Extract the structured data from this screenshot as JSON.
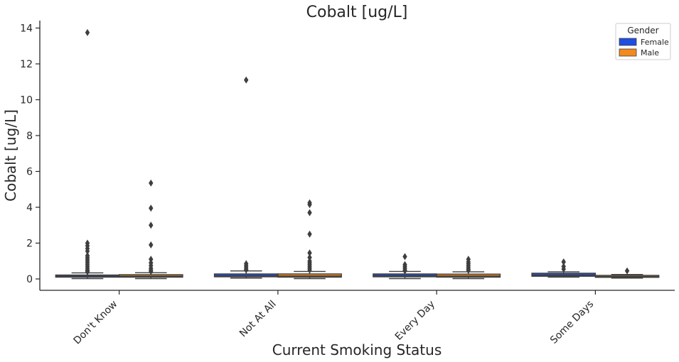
{
  "chart_data": {
    "type": "box",
    "title": "Cobalt [ug/L]",
    "xlabel": "Current Smoking Status",
    "ylabel": "Cobalt [ug/L]",
    "ylim": [
      -0.6,
      14.4
    ],
    "yticks": [
      0,
      2,
      4,
      6,
      8,
      10,
      12,
      14
    ],
    "categories": [
      "Don't Know",
      "Not At All",
      "Every Day",
      "Some Days"
    ],
    "legend": {
      "title": "Gender",
      "position": "top-right"
    },
    "grid": false,
    "series": [
      {
        "name": "Female",
        "color": "#1f4ee0",
        "boxes": [
          {
            "q1": 0.1,
            "median": 0.16,
            "q3": 0.22,
            "whisker_low": 0.02,
            "whisker_high": 0.34,
            "outliers": [
              13.75,
              2.0,
              1.85,
              1.7,
              1.55,
              1.3,
              1.2,
              1.1,
              1.0,
              0.9,
              0.8,
              0.7,
              0.6,
              0.5,
              0.45,
              0.4
            ]
          },
          {
            "q1": 0.12,
            "median": 0.17,
            "q3": 0.28,
            "whisker_low": 0.05,
            "whisker_high": 0.45,
            "outliers": [
              11.1,
              0.85,
              0.75,
              0.65,
              0.55,
              0.5
            ]
          },
          {
            "q1": 0.12,
            "median": 0.18,
            "q3": 0.28,
            "whisker_low": 0.02,
            "whisker_high": 0.42,
            "outliers": [
              1.25,
              0.8,
              0.7,
              0.6,
              0.5,
              0.45
            ]
          },
          {
            "q1": 0.15,
            "median": 0.21,
            "q3": 0.32,
            "whisker_low": 0.1,
            "whisker_high": 0.4,
            "outliers": [
              0.95,
              0.7,
              0.55
            ]
          }
        ]
      },
      {
        "name": "Male",
        "color": "#f28a1e",
        "boxes": [
          {
            "q1": 0.1,
            "median": 0.15,
            "q3": 0.24,
            "whisker_low": 0.02,
            "whisker_high": 0.35,
            "outliers": [
              5.35,
              3.95,
              3.0,
              1.9,
              1.1,
              0.9,
              0.75,
              0.6,
              0.5,
              0.42
            ]
          },
          {
            "q1": 0.1,
            "median": 0.16,
            "q3": 0.28,
            "whisker_low": 0.02,
            "whisker_high": 0.42,
            "outliers": [
              4.25,
              4.15,
              3.7,
              2.5,
              1.45,
              1.2,
              1.0,
              0.9,
              0.8,
              0.7,
              0.6,
              0.5
            ]
          },
          {
            "q1": 0.1,
            "median": 0.16,
            "q3": 0.27,
            "whisker_low": 0.02,
            "whisker_high": 0.4,
            "outliers": [
              1.1,
              0.95,
              0.85,
              0.75,
              0.65,
              0.55,
              0.48
            ]
          },
          {
            "q1": 0.09,
            "median": 0.13,
            "q3": 0.2,
            "whisker_low": 0.05,
            "whisker_high": 0.25,
            "outliers": [
              0.45
            ]
          }
        ]
      }
    ]
  }
}
